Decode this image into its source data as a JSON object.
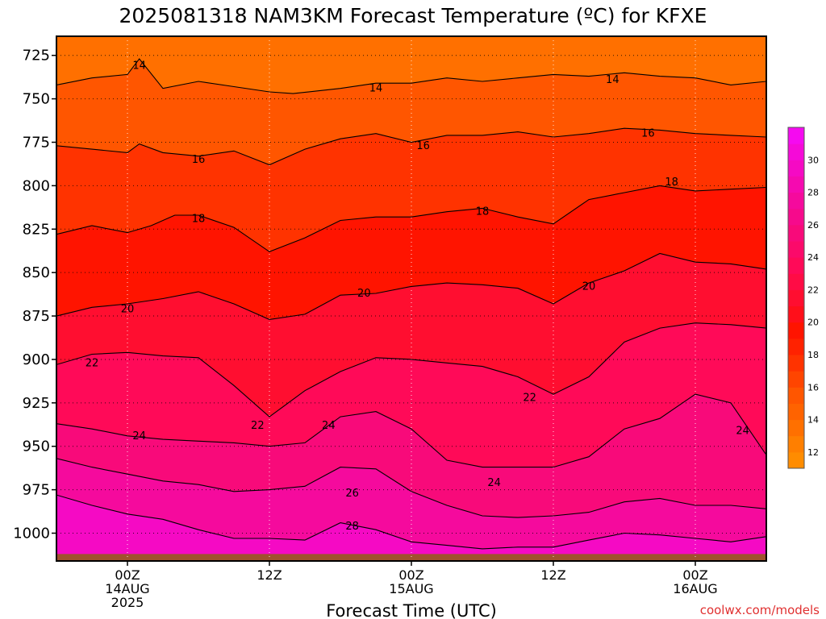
{
  "title": "2025081318 NAM3KM Forecast Temperature (ºC) for KFXE",
  "credit": "coolwx.com/models",
  "chart_data": {
    "type": "contour",
    "title": "2025081318 NAM3KM Forecast Temperature (ºC) for KFXE",
    "xlabel": "Forecast Time (UTC)",
    "ylabel": "",
    "y_axis": {
      "unit": "hPa",
      "inverted": true,
      "ylim": [
        1016,
        714
      ],
      "ticks": [
        725,
        750,
        775,
        800,
        825,
        850,
        875,
        900,
        925,
        950,
        975,
        1000
      ]
    },
    "x_axis": {
      "unit": "forecast hour",
      "xlim": [
        -6,
        54
      ],
      "ticks": [
        {
          "hour": 0,
          "lines": [
            "00Z",
            "14AUG",
            "2025"
          ]
        },
        {
          "hour": 12,
          "lines": [
            "12Z"
          ]
        },
        {
          "hour": 24,
          "lines": [
            "00Z",
            "15AUG"
          ]
        },
        {
          "hour": 36,
          "lines": [
            "12Z"
          ]
        },
        {
          "hour": 48,
          "lines": [
            "00Z",
            "16AUG"
          ]
        }
      ]
    },
    "grid": true,
    "colorbar": {
      "placement": "right",
      "levels": [
        11,
        12,
        13,
        14,
        15,
        16,
        17,
        18,
        19,
        20,
        21,
        22,
        23,
        24,
        25,
        26,
        27,
        28,
        29,
        30,
        31,
        32
      ],
      "tick_labels": [
        12,
        14,
        16,
        18,
        20,
        22,
        24,
        26,
        28,
        30
      ],
      "colors": [
        "#ff8c00",
        "#ff7f00",
        "#ff7000",
        "#ff6300",
        "#ff5600",
        "#ff4500",
        "#ff3300",
        "#ff2200",
        "#ff1400",
        "#ff0f1a",
        "#ff0e30",
        "#ff0c45",
        "#ff0a58",
        "#fb0a6a",
        "#f80a7a",
        "#f60a8c",
        "#f50a9d",
        "#f50ab0",
        "#f50ac4",
        "#f50ad8",
        "#f50af0"
      ]
    },
    "contour_levels": [
      14,
      16,
      18,
      20,
      22,
      24,
      26,
      28
    ],
    "contour_label_text": [
      "14",
      "16",
      "18",
      "20",
      "22",
      "24",
      "26",
      "28"
    ],
    "contours": [
      {
        "level": 14,
        "pressure": [
          [
            -6,
            742
          ],
          [
            -3,
            738
          ],
          [
            0,
            736
          ],
          [
            1,
            727
          ],
          [
            3,
            744
          ],
          [
            6,
            740
          ],
          [
            9,
            743
          ],
          [
            12,
            746
          ],
          [
            14,
            747
          ],
          [
            18,
            744
          ],
          [
            21,
            741
          ],
          [
            24,
            741
          ],
          [
            27,
            738
          ],
          [
            30,
            740
          ],
          [
            33,
            738
          ],
          [
            36,
            736
          ],
          [
            39,
            737
          ],
          [
            42,
            735
          ],
          [
            45,
            737
          ],
          [
            48,
            738
          ],
          [
            51,
            742
          ],
          [
            54,
            740
          ]
        ]
      },
      {
        "level": 16,
        "pressure": [
          [
            -6,
            777
          ],
          [
            -3,
            779
          ],
          [
            0,
            781
          ],
          [
            1,
            776
          ],
          [
            3,
            781
          ],
          [
            6,
            783
          ],
          [
            9,
            780
          ],
          [
            12,
            788
          ],
          [
            15,
            779
          ],
          [
            18,
            773
          ],
          [
            21,
            770
          ],
          [
            24,
            775
          ],
          [
            27,
            771
          ],
          [
            30,
            771
          ],
          [
            33,
            769
          ],
          [
            36,
            772
          ],
          [
            39,
            770
          ],
          [
            42,
            767
          ],
          [
            45,
            768
          ],
          [
            48,
            770
          ],
          [
            51,
            771
          ],
          [
            54,
            772
          ]
        ]
      },
      {
        "level": 18,
        "pressure": [
          [
            -6,
            828
          ],
          [
            -3,
            823
          ],
          [
            0,
            827
          ],
          [
            2,
            823
          ],
          [
            4,
            817
          ],
          [
            6,
            817
          ],
          [
            9,
            824
          ],
          [
            12,
            838
          ],
          [
            15,
            830
          ],
          [
            18,
            820
          ],
          [
            21,
            818
          ],
          [
            24,
            818
          ],
          [
            27,
            815
          ],
          [
            30,
            813
          ],
          [
            33,
            818
          ],
          [
            36,
            822
          ],
          [
            39,
            808
          ],
          [
            42,
            804
          ],
          [
            45,
            800
          ],
          [
            48,
            803
          ],
          [
            51,
            802
          ],
          [
            54,
            801
          ]
        ]
      },
      {
        "level": 20,
        "pressure": [
          [
            -6,
            875
          ],
          [
            -3,
            870
          ],
          [
            0,
            868
          ],
          [
            3,
            865
          ],
          [
            6,
            861
          ],
          [
            9,
            868
          ],
          [
            12,
            877
          ],
          [
            15,
            874
          ],
          [
            18,
            863
          ],
          [
            21,
            862
          ],
          [
            24,
            858
          ],
          [
            27,
            856
          ],
          [
            30,
            857
          ],
          [
            33,
            859
          ],
          [
            36,
            868
          ],
          [
            39,
            856
          ],
          [
            42,
            849
          ],
          [
            45,
            839
          ],
          [
            48,
            844
          ],
          [
            51,
            845
          ],
          [
            54,
            848
          ]
        ]
      },
      {
        "level": 22,
        "pressure": [
          [
            -6,
            903
          ],
          [
            -3,
            897
          ],
          [
            0,
            896
          ],
          [
            3,
            898
          ],
          [
            6,
            899
          ],
          [
            9,
            915
          ],
          [
            12,
            933
          ],
          [
            15,
            918
          ],
          [
            18,
            907
          ],
          [
            21,
            899
          ],
          [
            24,
            900
          ],
          [
            27,
            902
          ],
          [
            30,
            904
          ],
          [
            33,
            910
          ],
          [
            36,
            920
          ],
          [
            39,
            910
          ],
          [
            42,
            890
          ],
          [
            45,
            882
          ],
          [
            48,
            879
          ],
          [
            51,
            880
          ],
          [
            54,
            882
          ]
        ]
      },
      {
        "level": 24,
        "pressure": [
          [
            -6,
            937
          ],
          [
            -3,
            940
          ],
          [
            0,
            944
          ],
          [
            3,
            946
          ],
          [
            6,
            947
          ],
          [
            9,
            948
          ],
          [
            12,
            950
          ],
          [
            15,
            948
          ],
          [
            18,
            933
          ],
          [
            21,
            930
          ],
          [
            24,
            940
          ],
          [
            27,
            958
          ],
          [
            30,
            962
          ],
          [
            33,
            962
          ],
          [
            36,
            962
          ],
          [
            39,
            956
          ],
          [
            42,
            940
          ],
          [
            45,
            934
          ],
          [
            48,
            920
          ],
          [
            51,
            925
          ],
          [
            54,
            955
          ]
        ]
      },
      {
        "level": 26,
        "pressure": [
          [
            -6,
            957
          ],
          [
            -3,
            962
          ],
          [
            0,
            966
          ],
          [
            3,
            970
          ],
          [
            6,
            972
          ],
          [
            9,
            976
          ],
          [
            12,
            975
          ],
          [
            15,
            973
          ],
          [
            18,
            962
          ],
          [
            21,
            963
          ],
          [
            24,
            976
          ],
          [
            27,
            984
          ],
          [
            30,
            990
          ],
          [
            33,
            991
          ],
          [
            36,
            990
          ],
          [
            39,
            988
          ],
          [
            42,
            982
          ],
          [
            45,
            980
          ],
          [
            48,
            984
          ],
          [
            51,
            984
          ],
          [
            54,
            986
          ]
        ]
      },
      {
        "level": 28,
        "pressure": [
          [
            -6,
            978
          ],
          [
            -3,
            984
          ],
          [
            0,
            989
          ],
          [
            3,
            992
          ],
          [
            6,
            998
          ],
          [
            9,
            1003
          ],
          [
            12,
            1003
          ],
          [
            15,
            1004
          ],
          [
            18,
            994
          ],
          [
            21,
            998
          ],
          [
            24,
            1005
          ],
          [
            27,
            1007
          ],
          [
            30,
            1009
          ],
          [
            33,
            1008
          ],
          [
            36,
            1008
          ],
          [
            39,
            1004
          ],
          [
            42,
            1000
          ],
          [
            45,
            1001
          ],
          [
            48,
            1003
          ],
          [
            51,
            1005
          ],
          [
            54,
            1002
          ]
        ]
      }
    ],
    "contour_labels": [
      {
        "text": "14",
        "hour": 1,
        "pressure": 731
      },
      {
        "text": "14",
        "hour": 21,
        "pressure": 744
      },
      {
        "text": "14",
        "hour": 41,
        "pressure": 739
      },
      {
        "text": "16",
        "hour": 6,
        "pressure": 785
      },
      {
        "text": "16",
        "hour": 25,
        "pressure": 777
      },
      {
        "text": "16",
        "hour": 44,
        "pressure": 770
      },
      {
        "text": "18",
        "hour": 6,
        "pressure": 819
      },
      {
        "text": "18",
        "hour": 30,
        "pressure": 815
      },
      {
        "text": "18",
        "hour": 46,
        "pressure": 798
      },
      {
        "text": "20",
        "hour": 0,
        "pressure": 871
      },
      {
        "text": "20",
        "hour": 20,
        "pressure": 862
      },
      {
        "text": "20",
        "hour": 39,
        "pressure": 858
      },
      {
        "text": "22",
        "hour": -3,
        "pressure": 902
      },
      {
        "text": "22",
        "hour": 11,
        "pressure": 938
      },
      {
        "text": "22",
        "hour": 34,
        "pressure": 922
      },
      {
        "text": "24",
        "hour": 1,
        "pressure": 944
      },
      {
        "text": "24",
        "hour": 17,
        "pressure": 938
      },
      {
        "text": "24",
        "hour": 31,
        "pressure": 971
      },
      {
        "text": "24",
        "hour": 52,
        "pressure": 941
      },
      {
        "text": "26",
        "hour": 19,
        "pressure": 977
      },
      {
        "text": "28",
        "hour": 19,
        "pressure": 996
      }
    ],
    "surface_pressure": 1012
  }
}
